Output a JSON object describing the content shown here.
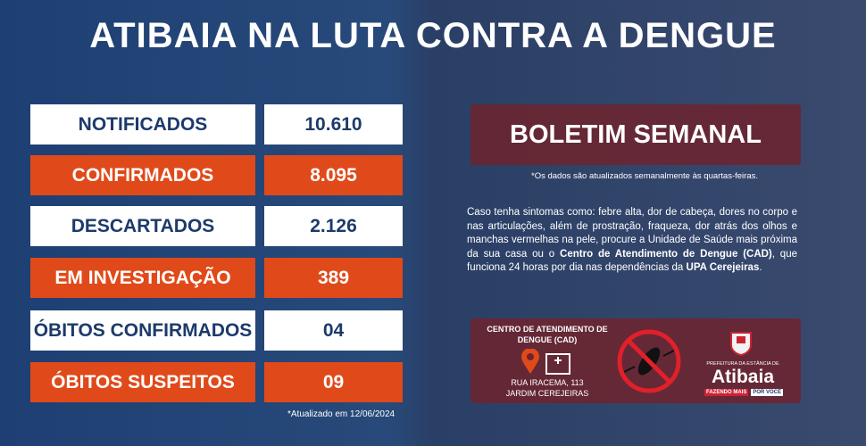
{
  "header": {
    "title": "ATIBAIA NA LUTA CONTRA A DENGUE"
  },
  "table": {
    "rows": [
      [
        "NOTIFICADOS",
        "10.610"
      ],
      [
        "CONFIRMADOS",
        "8.095"
      ],
      [
        "DESCARTADOS",
        "2.126"
      ],
      [
        "EM INVESTIGAÇÃO",
        "389"
      ],
      [
        "ÓBITOS CONFIRMADOS",
        "04"
      ],
      [
        "ÓBITOS SUSPEITOS",
        "09"
      ]
    ],
    "note": "*Atualizado em 12/06/2024"
  },
  "bulletin": {
    "title": "BOLETIM SEMANAL",
    "note": "*Os dados são atualizados semanalmente às quartas-feiras.",
    "paragraph": [
      "Caso tenha sintomas como: febre alta, dor de cabeça, dores no corpo e nas articulações, além de prostração, fraqueza, dor atrás dos olhos e manchas vermelhas na pele, procure a Unidade de Saúde mais próxima da sua casa ou o ",
      "Centro de Atendimento de Dengue (CAD)",
      ", que funciona 24 horas por dia nas dependências da ",
      "UPA Cerejeiras",
      "."
    ]
  },
  "cad": {
    "title": "CENTRO DE ATENDIMENTO DE DENGUE (CAD)",
    "address": [
      "RUA IRACEMA, 113",
      "JARDIM CEREJEIRAS"
    ]
  },
  "logo": {
    "caption": "PREFEITURA DA ESTÂNCIA DE",
    "name": "Atibaia",
    "slogan": [
      "FAZENDO MAIS",
      "POR VOCÊ"
    ]
  }
}
